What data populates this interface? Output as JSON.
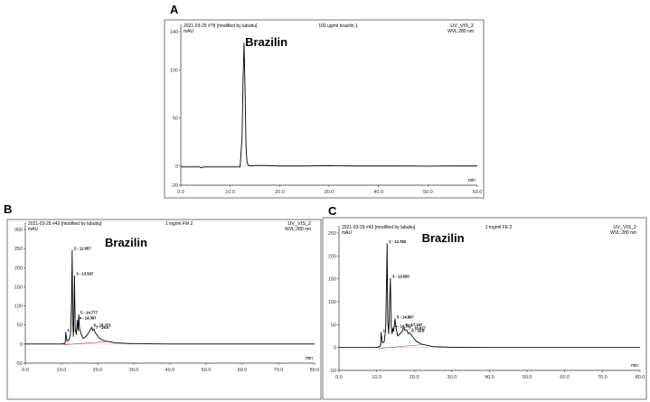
{
  "panels": [
    {
      "letter": "A",
      "header_left": "2021-03-29 #78 [modified by labubu]",
      "header_mid": "100 ug/ml brazilin 1",
      "header_right": "UV_VIS_2",
      "header_right2": "WVL:280 nm",
      "y_unit": "mAU",
      "x_unit": "min",
      "compound": "Brazilin"
    },
    {
      "letter": "B",
      "header_left": "2021-03-29 #42 [modified by labubu]",
      "header_mid": "1 mg/ml FM 2",
      "header_right": "UV_VIS_2",
      "header_right2": "WVL:280 nm",
      "y_unit": "mAU",
      "x_unit": "min",
      "compound": "Brazilin"
    },
    {
      "letter": "C",
      "header_left": "2021-03-29 #43 [modified by labubu]",
      "header_mid": "1 mg/ml FE 2",
      "header_right": "UV_VIS_2",
      "header_right2": "WVL:280 nm",
      "y_unit": "mAU",
      "x_unit": "min",
      "compound": "Brazilin"
    }
  ],
  "colors": {
    "trace": "#000000",
    "baseline": "#1a1a1a",
    "integration": "#cc3355",
    "marker": "#3366cc"
  },
  "chart_data": [
    {
      "type": "line",
      "title": "100 ug/ml brazilin 1",
      "xlabel": "min",
      "ylabel": "mAU",
      "xlim": [
        0,
        60
      ],
      "ylim": [
        -20,
        140
      ],
      "xticks": [
        0,
        10,
        20,
        30,
        40,
        50,
        60
      ],
      "xtick_labels": [
        "0.0",
        "10.0",
        "20.0",
        "30.0",
        "40.0",
        "50.0",
        "60.0"
      ],
      "yticks": [
        -20,
        0,
        50,
        100,
        140
      ],
      "ytick_labels": [
        "-20",
        "0",
        "50",
        "100",
        "140"
      ],
      "annotations": [
        {
          "text": "Brazilin",
          "x": 13,
          "y": 125
        }
      ],
      "peak_labels": [],
      "series": [
        {
          "x": [
            0,
            3.8,
            4.2,
            4.6,
            5.2,
            8,
            12,
            12.4,
            12.6,
            12.8,
            13.0,
            13.2,
            13.4,
            13.6,
            14,
            15,
            17,
            20,
            25,
            30,
            35,
            40,
            45,
            50,
            55,
            60
          ],
          "y": [
            -1,
            -1,
            -2,
            -1,
            -1,
            -1,
            -1,
            30,
            90,
            128,
            80,
            20,
            4,
            1,
            0,
            0.5,
            0.5,
            0,
            0,
            0.3,
            0,
            0,
            0,
            -0.2,
            0,
            0
          ]
        }
      ]
    },
    {
      "type": "line",
      "title": "1 mg/ml FM 2",
      "xlabel": "min",
      "ylabel": "mAU",
      "xlim": [
        0,
        80
      ],
      "ylim": [
        -50,
        300
      ],
      "xticks": [
        0,
        10,
        20,
        30,
        40,
        50,
        60,
        70,
        80
      ],
      "xtick_labels": [
        "0.0",
        "10.0",
        "20.0",
        "30.0",
        "40.0",
        "50.0",
        "60.0",
        "70.0",
        "80.0"
      ],
      "yticks": [
        -50,
        0,
        50,
        100,
        150,
        200,
        250,
        300
      ],
      "ytick_labels": [
        "-50",
        "0",
        "50",
        "100",
        "150",
        "200",
        "250",
        "300"
      ],
      "annotations": [
        {
          "text": "Brazilin",
          "x": 22,
          "y": 255
        }
      ],
      "peak_labels": [
        {
          "text": "1 - 1",
          "x": 11.1,
          "y": 30
        },
        {
          "text": "2 - 12.957",
          "x": 12.957,
          "y": 244
        },
        {
          "text": "3 - 13.597",
          "x": 13.597,
          "y": 178
        },
        {
          "text": "4 - 14.397",
          "x": 14.4,
          "y": 62
        },
        {
          "text": "5 - 14.777",
          "x": 14.777,
          "y": 76
        },
        {
          "text": "6 - 18.373",
          "x": 18.4,
          "y": 44
        },
        {
          "text": "7 - 19.0",
          "x": 19.0,
          "y": 38
        }
      ],
      "series": [
        {
          "x": [
            0,
            5,
            10,
            11,
            11.2,
            11.5,
            12,
            12.5,
            12.8,
            12.957,
            13.1,
            13.3,
            13.5,
            13.597,
            13.8,
            14.1,
            14.4,
            14.6,
            14.777,
            15,
            15.5,
            16,
            16.5,
            17,
            17.5,
            18,
            18.373,
            18.7,
            19,
            19.3,
            19.7,
            20.5,
            22,
            25,
            30,
            40,
            50,
            60,
            70,
            80
          ],
          "y": [
            0,
            0,
            0,
            2,
            30,
            8,
            10,
            25,
            110,
            244,
            60,
            20,
            110,
            178,
            40,
            25,
            62,
            35,
            76,
            40,
            25,
            15,
            18,
            22,
            30,
            38,
            44,
            35,
            40,
            30,
            25,
            15,
            8,
            3,
            1,
            0,
            0,
            0,
            0,
            0
          ]
        }
      ]
    },
    {
      "type": "line",
      "title": "1 mg/ml FE 2",
      "xlabel": "min",
      "ylabel": "mAU",
      "xlim": [
        0,
        80
      ],
      "ylim": [
        -50,
        250
      ],
      "xticks": [
        0,
        10,
        20,
        30,
        40,
        50,
        60,
        70,
        80
      ],
      "xtick_labels": [
        "0.0",
        "10.0",
        "20.0",
        "30.0",
        "40.0",
        "50.0",
        "60.0",
        "70.0",
        "80.0"
      ],
      "yticks": [
        -50,
        0,
        50,
        100,
        150,
        200,
        250
      ],
      "ytick_labels": [
        "-50",
        "0",
        "50",
        "100",
        "150",
        "200",
        "250"
      ],
      "annotations": [
        {
          "text": "Brazilin",
          "x": 22,
          "y": 230
        }
      ],
      "peak_labels": [
        {
          "text": "1",
          "x": 11.2,
          "y": 32
        },
        {
          "text": "2 - 12.783",
          "x": 12.783,
          "y": 226
        },
        {
          "text": "3 - 13.650",
          "x": 13.65,
          "y": 150
        },
        {
          "text": "4 - 14.307",
          "x": 14.307,
          "y": 42
        },
        {
          "text": "5 - 14.887",
          "x": 14.887,
          "y": 62
        },
        {
          "text": "6 - 17.167",
          "x": 17.167,
          "y": 45
        },
        {
          "text": "7 - 18.027",
          "x": 18.027,
          "y": 38
        },
        {
          "text": "8 - 18.8",
          "x": 18.8,
          "y": 32
        }
      ],
      "series": [
        {
          "x": [
            0,
            5,
            10,
            11,
            11.2,
            11.5,
            12,
            12.4,
            12.6,
            12.783,
            12.95,
            13.2,
            13.5,
            13.65,
            13.85,
            14.1,
            14.307,
            14.5,
            14.887,
            15.2,
            15.6,
            16.2,
            16.8,
            17.167,
            17.5,
            18.027,
            18.4,
            18.8,
            19.2,
            19.7,
            20.5,
            22,
            25,
            30,
            40,
            50,
            60,
            70,
            80
          ],
          "y": [
            0,
            0,
            0,
            3,
            32,
            10,
            12,
            40,
            130,
            226,
            60,
            30,
            110,
            150,
            50,
            30,
            42,
            35,
            62,
            40,
            25,
            30,
            35,
            45,
            38,
            38,
            30,
            32,
            28,
            22,
            14,
            7,
            2,
            0.5,
            0,
            0,
            0,
            0,
            0
          ]
        }
      ]
    }
  ]
}
